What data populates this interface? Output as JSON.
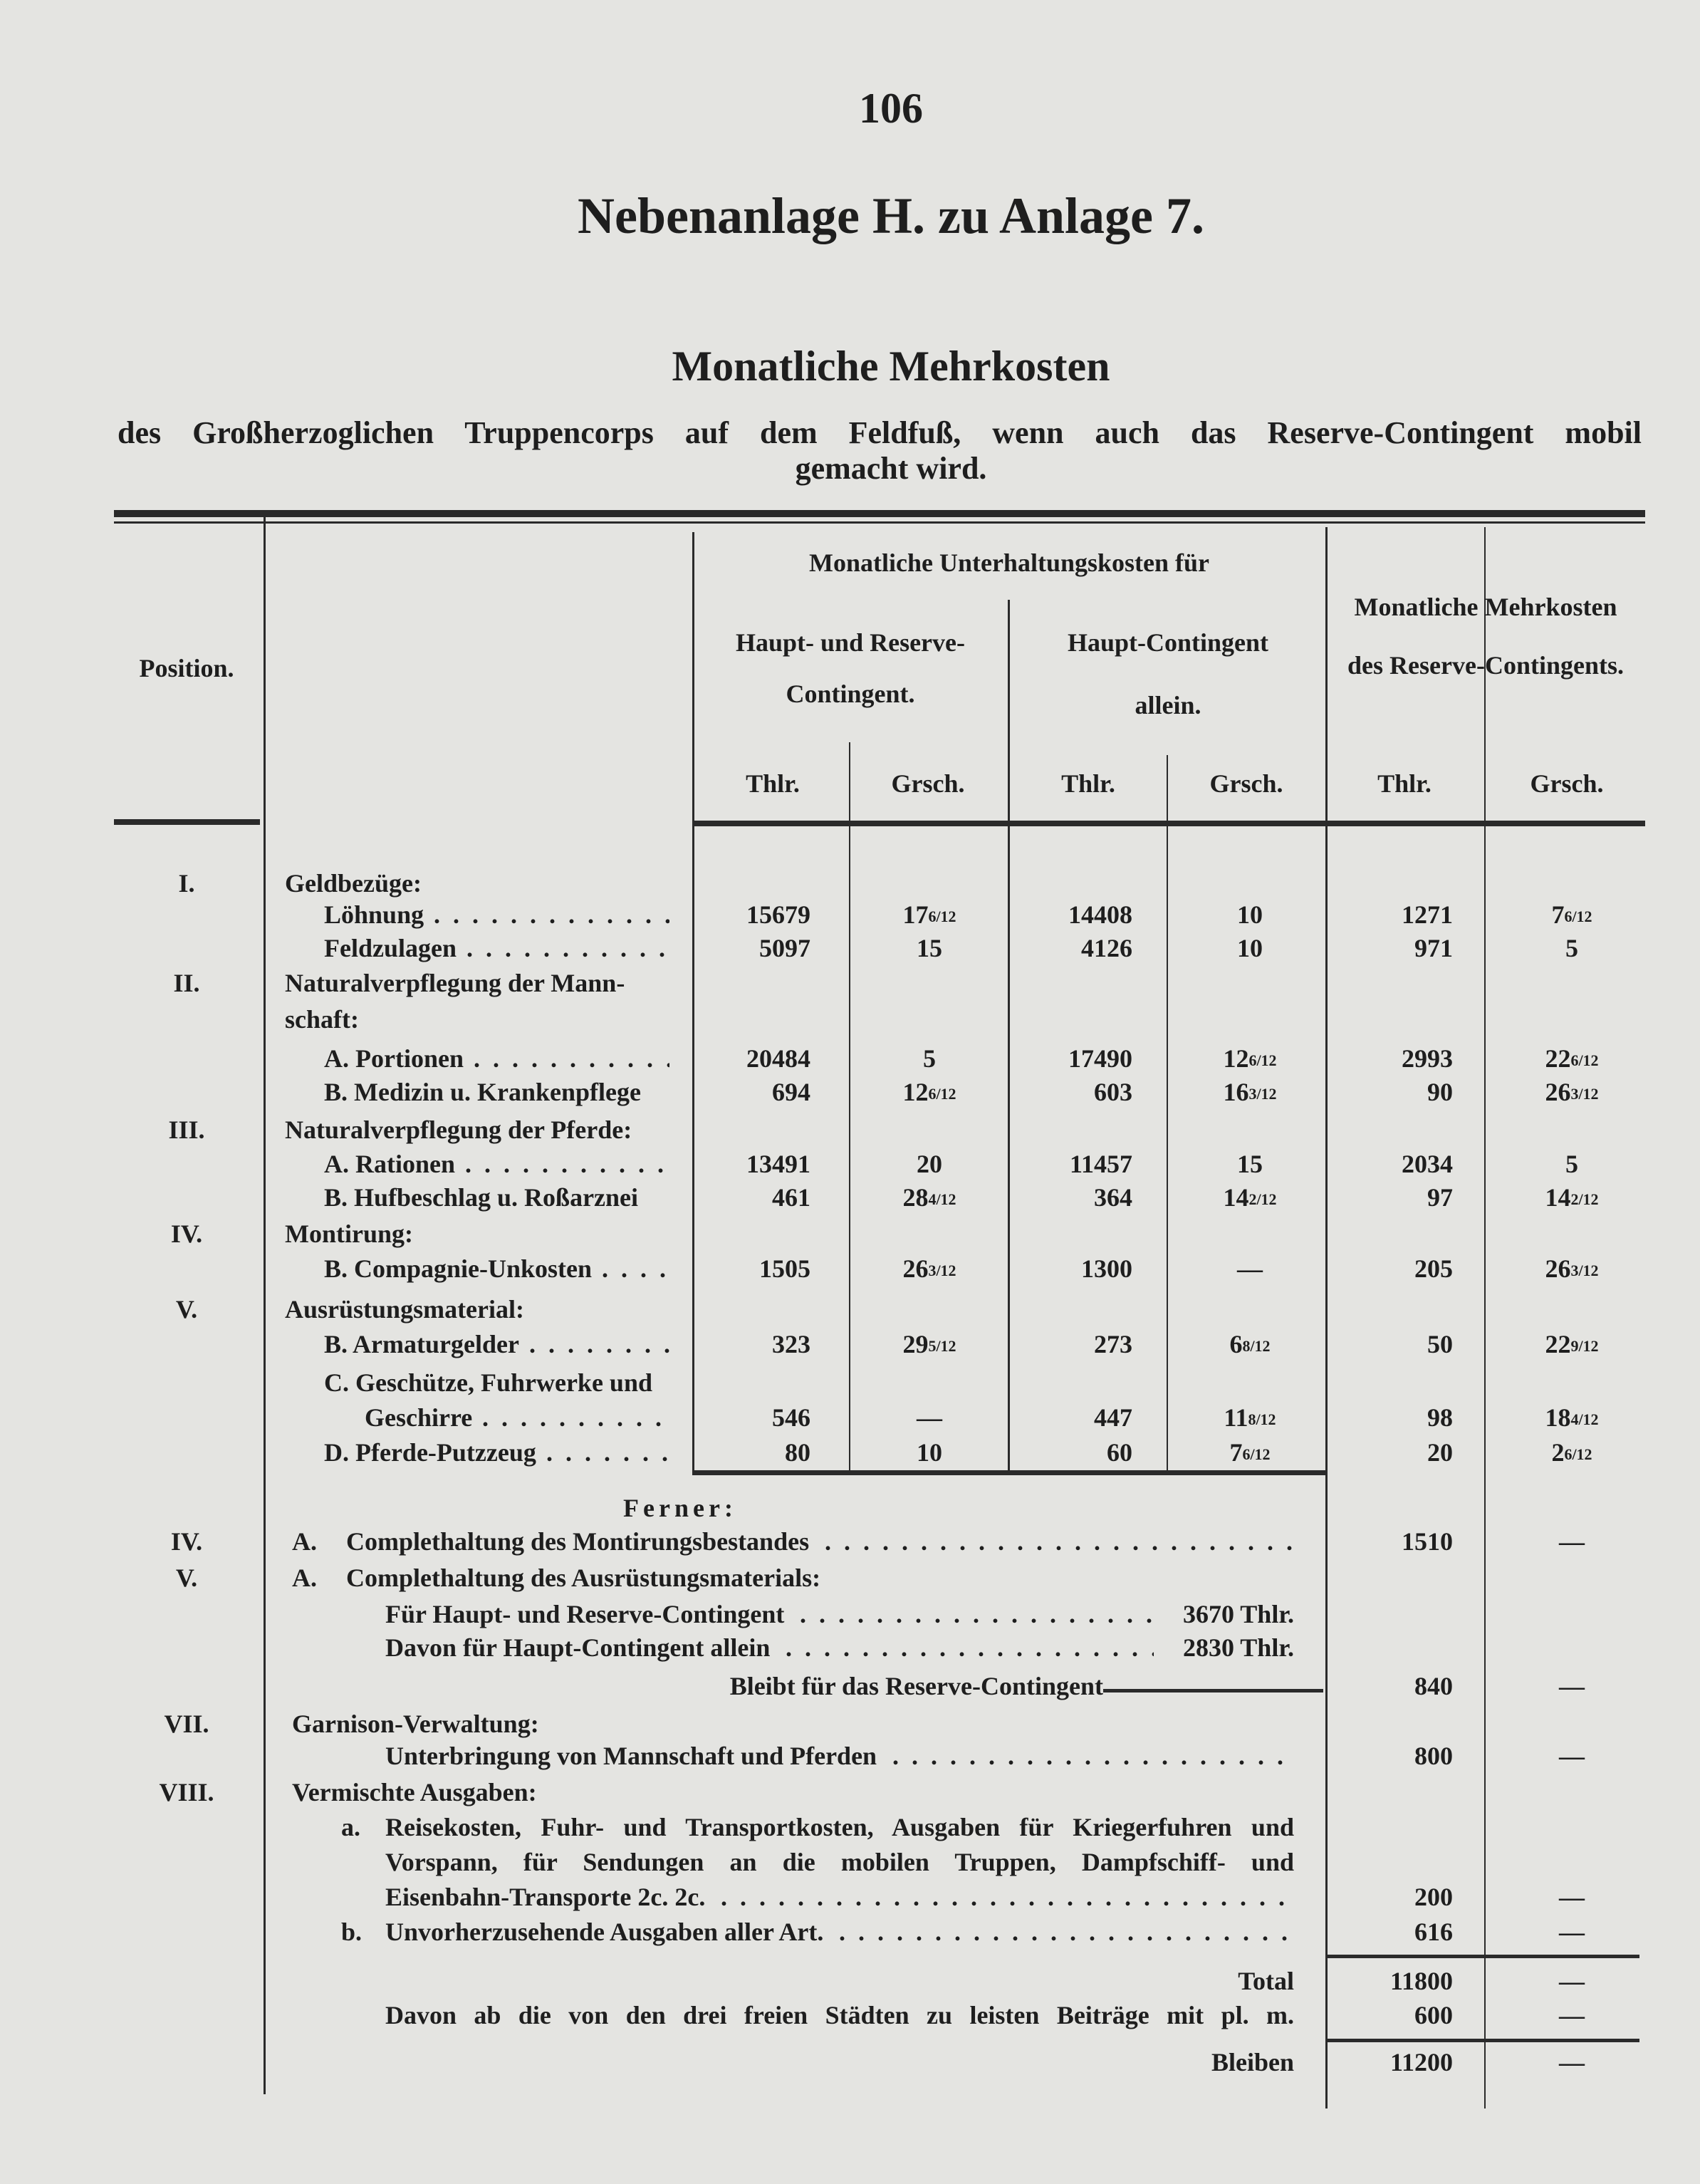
{
  "page_number": "106",
  "title": "Nebenanlage H. zu Anlage 7.",
  "subtitle": "Monatliche Mehrkosten",
  "description_line1": "des Großherzoglichen Truppencorps auf dem Feldfuß, wenn auch das Reserve-Contingent mobil",
  "description_line2": "gemacht wird.",
  "header": {
    "position": "Position.",
    "group": "Monatliche Unterhaltungskosten für",
    "col_hr_1": "Haupt- und Reserve-",
    "col_hr_2": "Contingent.",
    "col_h_1": "Haupt-Contingent",
    "col_h_2": "allein.",
    "col_r_1": "Monatliche Mehrkosten",
    "col_r_2": "des Reserve-Contingents.",
    "thlr": "Thlr.",
    "grsch": "Grsch."
  },
  "rows": [
    {
      "pos": "I.",
      "label": "Geldbezüge:",
      "indent": 0
    },
    {
      "label": "Löhnung",
      "indent": 1,
      "dots": true,
      "hr_thlr": "15679",
      "hr_grsch": "17 6/12",
      "h_thlr": "14408",
      "h_grsch": "10",
      "r_thlr": "1271",
      "r_grsch": "7 6/12"
    },
    {
      "label": "Feldzulagen",
      "indent": 1,
      "dots": true,
      "hr_thlr": "5097",
      "hr_grsch": "15",
      "h_thlr": "4126",
      "h_grsch": "10",
      "r_thlr": "971",
      "r_grsch": "5"
    },
    {
      "pos": "II.",
      "label": "Naturalverpflegung der Mann-",
      "indent": 0
    },
    {
      "label": "schaft:",
      "indent": 0
    },
    {
      "label": "A. Portionen",
      "indent": 1,
      "dots": true,
      "hr_thlr": "20484",
      "hr_grsch": "5",
      "h_thlr": "17490",
      "h_grsch": "12 6/12",
      "r_thlr": "2993",
      "r_grsch": "22 6/12"
    },
    {
      "label": "B. Medizin u. Krankenpflege",
      "indent": 1,
      "hr_thlr": "694",
      "hr_grsch": "12 6/12",
      "h_thlr": "603",
      "h_grsch": "16 3/12",
      "r_thlr": "90",
      "r_grsch": "26 3/12"
    },
    {
      "pos": "III.",
      "label": "Naturalverpflegung der Pferde:",
      "indent": 0
    },
    {
      "label": "A. Rationen",
      "indent": 1,
      "dots": true,
      "hr_thlr": "13491",
      "hr_grsch": "20",
      "h_thlr": "11457",
      "h_grsch": "15",
      "r_thlr": "2034",
      "r_grsch": "5"
    },
    {
      "label": "B. Hufbeschlag u. Roßarznei",
      "indent": 1,
      "hr_thlr": "461",
      "hr_grsch": "28 4/12",
      "h_thlr": "364",
      "h_grsch": "14 2/12",
      "r_thlr": "97",
      "r_grsch": "14 2/12"
    },
    {
      "pos": "IV.",
      "label": "Montirung:",
      "indent": 0
    },
    {
      "label": "B. Compagnie-Unkosten",
      "indent": 1,
      "dots": true,
      "hr_thlr": "1505",
      "hr_grsch": "26 3/12",
      "h_thlr": "1300",
      "h_grsch": "—",
      "r_thlr": "205",
      "r_grsch": "26 3/12"
    },
    {
      "pos": "V.",
      "label": "Ausrüstungsmaterial:",
      "indent": 0
    },
    {
      "label": "B. Armaturgelder",
      "indent": 1,
      "dots": true,
      "hr_thlr": "323",
      "hr_grsch": "29 5/12",
      "h_thlr": "273",
      "h_grsch": "6 8/12",
      "r_thlr": "50",
      "r_grsch": "22 9/12"
    },
    {
      "label": "C. Geschütze, Fuhrwerke und",
      "indent": 1
    },
    {
      "label": "Geschirre",
      "indent": 2,
      "dots": true,
      "hr_thlr": "546",
      "hr_grsch": "—",
      "h_thlr": "447",
      "h_grsch": "11 8/12",
      "r_thlr": "98",
      "r_grsch": "18 4/12"
    },
    {
      "label": "D. Pferde-Putzzeug",
      "indent": 1,
      "dots": true,
      "hr_thlr": "80",
      "hr_grsch": "10",
      "h_thlr": "60",
      "h_grsch": "7 6/12",
      "r_thlr": "20",
      "r_grsch": "2 6/12"
    }
  ],
  "ferner": "Ferner:",
  "lower_rows": [
    {
      "pos": "IV.",
      "letter": "A.",
      "text": "Complethaltung des Montirungsbestandes",
      "dots": true,
      "r_thlr": "1510",
      "r_grsch": "—"
    },
    {
      "pos": "V.",
      "letter": "A.",
      "text": "Complethaltung des Ausrüstungsmaterials:"
    },
    {
      "sub": "Für Haupt- und Reserve-Contingent",
      "dots": true,
      "inner": "3670 Thlr."
    },
    {
      "sub": "Davon für Haupt-Contingent allein",
      "dots": true,
      "inner": "2830 Thlr."
    },
    {
      "right_label": "Bleibt für das Reserve-Contingent",
      "r_thlr": "840",
      "r_grsch": "—"
    },
    {
      "pos": "VII.",
      "text0": "Garnison-Verwaltung:"
    },
    {
      "sub": "Unterbringung von Mannschaft und Pferden",
      "dots": true,
      "r_thlr": "800",
      "r_grsch": "—"
    },
    {
      "pos": "VIII.",
      "text0": "Vermischte Ausgaben:"
    },
    {
      "letter2": "a.",
      "sub": "Reisekosten, Fuhr- und Transportkosten, Ausgaben für Kriegerfuhren und"
    },
    {
      "sub": "Vorspann, für Sendungen an die mobilen Truppen, Dampfschiff- und"
    },
    {
      "sub": "Eisenbahn-Transporte 2c. 2c.",
      "dots": true,
      "r_thlr": "200",
      "r_grsch": "—"
    },
    {
      "letter2": "b.",
      "sub": "Unvorherzusehende Ausgaben aller Art.",
      "dots": true,
      "r_thlr": "616",
      "r_grsch": "—"
    },
    {
      "right_label": "Total",
      "r_thlr": "11800",
      "r_grsch": "—"
    },
    {
      "sub": "Davon ab die von den drei freien Städten zu leisten Beiträge mit pl. m.",
      "r_thlr": "600",
      "r_grsch": "—"
    },
    {
      "right_label": "Bleiben",
      "r_thlr": "11200",
      "r_grsch": "—"
    }
  ]
}
